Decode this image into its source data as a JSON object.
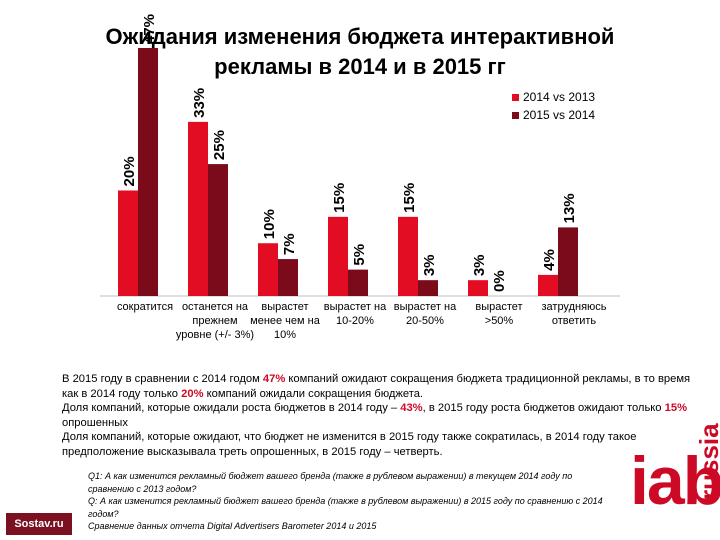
{
  "chart_data": {
    "type": "bar",
    "title": "Ожидания изменения бюджета интерактивной рекламы в 2014 и в 2015 гг",
    "categories": [
      "сократится",
      "останется на прежнем уровне (+/- 3%)",
      "вырастет менее чем на 10%",
      "вырастет на 10-20%",
      "вырастет на 20-50%",
      "вырастет >50%",
      "затрудняюсь ответить"
    ],
    "series": [
      {
        "name": "2014 vs 2013",
        "color": "#e30d23",
        "values": [
          20,
          33,
          10,
          15,
          15,
          3,
          4
        ],
        "labels": [
          "20%",
          "33%",
          "10%",
          "15%",
          "15%",
          "3%",
          "4%"
        ]
      },
      {
        "name": "2015 vs 2014",
        "color": "#7b0b1a",
        "values": [
          47,
          25,
          7,
          5,
          3,
          0,
          13
        ],
        "labels": [
          "47%",
          "25%",
          "7%",
          "5%",
          "3%",
          "0%",
          "13%"
        ]
      }
    ],
    "ylim": [
      0,
      50
    ]
  },
  "description": {
    "p1_a": "В 2015 году в сравнении с  2014 годом ",
    "p1_h1": "47%",
    "p1_b": " компаний ожидают сокращения бюджета традиционной рекламы, в то время как в 2014 году только ",
    "p1_h2": "20%",
    "p1_c": " компаний ожидали сокращения бюджета.",
    "p2_a": "Доля компаний, которые ожидали роста бюджетов в 2014 году – ",
    "p2_h1": "43%",
    "p2_b": ", в 2015 году роста бюджетов ожидают только ",
    "p2_h2": "15%",
    "p2_c": " опрошенных",
    "p3": "Доля компаний, которые ожидают, что бюджет не изменится в 2015 году также сократилась, в 2014 году такое предположение высказывала треть опрошенных, в 2015 году – четверть."
  },
  "notes": {
    "q1": "Q1: А как изменится рекламный бюджет вашего бренда (также в рублевом выражении) в текущем 2014 году по сравнению с 2013 годом?",
    "q2": "Q: А как изменится рекламный бюджет вашего бренда (также в рублевом выражении) в 2015 году по сравнению с 2014 годом?",
    "source": "Сравнение данных отчета Digital Advertisers Barometer 2014 и 2015"
  },
  "logos": {
    "sostav": "Sostav.ru",
    "iab": "iab",
    "russia": "russia"
  }
}
